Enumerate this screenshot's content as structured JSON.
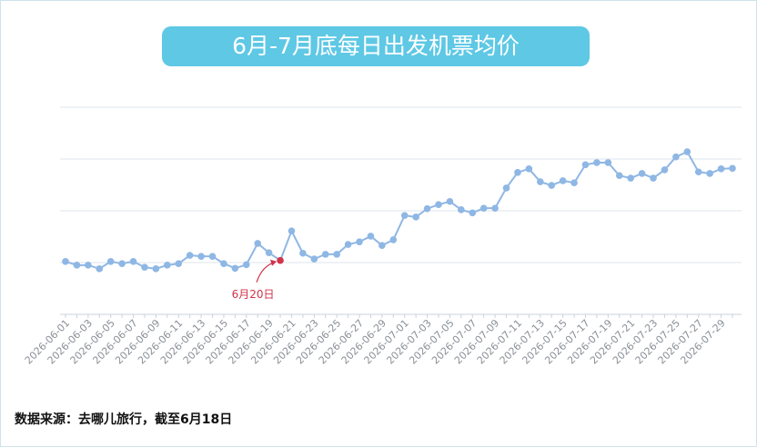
{
  "chart_data": {
    "type": "line",
    "title": "6月-7月底每日出发机票均价",
    "source": "数据来源：去哪儿旅行，截至6月18日",
    "annotation": "6月20日",
    "categories": [
      "2026-06-01",
      null,
      "2026-06-03",
      null,
      "2026-06-05",
      null,
      "2026-06-07",
      null,
      "2026-06-09",
      null,
      "2026-06-11",
      null,
      "2026-06-13",
      null,
      "2026-06-15",
      null,
      "2026-06-17",
      null,
      "2026-06-19",
      null,
      "2026-06-21",
      null,
      "2026-06-23",
      null,
      "2026-06-25",
      null,
      "2026-06-27",
      null,
      "2026-06-29",
      null,
      "2026-07-01",
      null,
      "2026-07-03",
      null,
      "2026-07-05",
      null,
      "2026-07-07",
      null,
      "2026-07-09",
      null,
      "2026-07-11",
      null,
      "2026-07-13",
      null,
      "2026-07-15",
      null,
      "2026-07-17",
      null,
      "2026-07-19",
      null,
      "2026-07-21",
      null,
      "2026-07-23",
      null,
      "2026-07-25",
      null,
      "2026-07-27",
      null,
      "2026-07-29",
      null
    ],
    "values": [
      1.02,
      0.95,
      0.95,
      0.88,
      1.02,
      0.98,
      1.02,
      0.91,
      0.88,
      0.95,
      0.98,
      1.14,
      1.12,
      1.12,
      0.98,
      0.89,
      0.96,
      1.37,
      1.19,
      1.04,
      1.61,
      1.18,
      1.07,
      1.16,
      1.16,
      1.35,
      1.4,
      1.51,
      1.33,
      1.44,
      1.91,
      1.88,
      2.04,
      2.12,
      2.18,
      2.02,
      1.96,
      2.05,
      2.05,
      2.44,
      2.74,
      2.81,
      2.56,
      2.49,
      2.58,
      2.54,
      2.89,
      2.93,
      2.93,
      2.68,
      2.63,
      2.72,
      2.63,
      2.79,
      3.04,
      3.14,
      2.75,
      2.72,
      2.81,
      2.82
    ],
    "color": "#8fb7e4",
    "highlight_color": "#d0334a",
    "ylim": [
      0,
      4
    ],
    "gridlines": [
      1,
      2,
      3,
      4
    ],
    "grid": true
  }
}
